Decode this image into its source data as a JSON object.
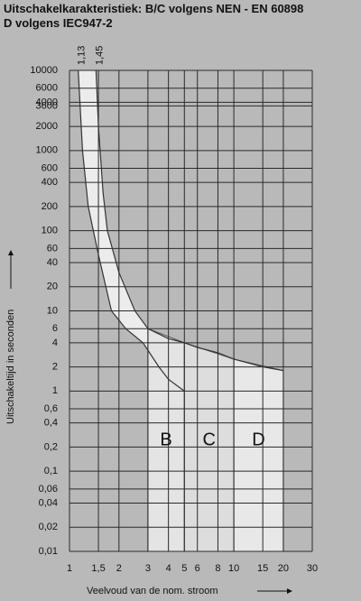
{
  "chart_data": {
    "type": "trip-curve",
    "title": [
      "Uitschakelkarakteristiek: B/C volgens NEN - EN 60898",
      "D volgens IEC947-2"
    ],
    "x_label": "Veelvoud van de nom. stroom",
    "y_label": "Uitschakeltijd in seconden",
    "log_x": true,
    "log_y": true,
    "grid": true,
    "xlim": [
      1,
      30
    ],
    "xticks": [
      1,
      {
        "value": 1.5,
        "label": "1,5"
      },
      2,
      3,
      4,
      5,
      6,
      8,
      10,
      15,
      20,
      30
    ],
    "ylim": [
      0.01,
      10000
    ],
    "yticks": [
      10000,
      6000,
      4000,
      3600,
      2000,
      1000,
      600,
      400,
      200,
      100,
      60,
      40,
      20,
      10,
      6,
      4,
      2,
      1,
      {
        "value": 0.6,
        "label": "0,6"
      },
      {
        "value": 0.4,
        "label": "0,4"
      },
      {
        "value": 0.2,
        "label": "0,2"
      },
      {
        "value": 0.1,
        "label": "0,1"
      },
      {
        "value": 0.06,
        "label": "0,06"
      },
      {
        "value": 0.04,
        "label": "0,04"
      },
      {
        "value": 0.02,
        "label": "0,02"
      },
      {
        "value": 0.01,
        "label": "0,01"
      }
    ],
    "curves": [
      {
        "label": "1,13",
        "x": [
          1.13,
          1.2,
          1.3,
          1.5,
          1.8,
          2.2,
          2.8,
          3.5,
          4,
          5
        ],
        "values": [
          10000,
          1000,
          200,
          50,
          10,
          6,
          4,
          2,
          1.4,
          1
        ]
      },
      {
        "label": "1,45",
        "x": [
          1.45,
          1.5,
          1.6,
          1.7,
          2,
          2.5,
          3,
          4,
          5,
          6,
          8,
          10,
          15,
          20
        ],
        "values": [
          10000,
          2000,
          300,
          100,
          30,
          10,
          6,
          4.5,
          4,
          3.5,
          3,
          2.5,
          2,
          1.8
        ]
      }
    ],
    "regions": [
      {
        "name": "B",
        "x": [
          3,
          3,
          5,
          5
        ],
        "values": [
          6,
          0.01,
          0.01,
          4
        ],
        "color": "#e4e4e4"
      },
      {
        "name": "C",
        "x": [
          5,
          5,
          10,
          10
        ],
        "values": [
          4,
          0.01,
          0.01,
          2.5
        ],
        "color": "#dddddd"
      },
      {
        "name": "D",
        "x": [
          10,
          10,
          20,
          20
        ],
        "values": [
          2.5,
          0.01,
          0.01,
          1.8
        ],
        "color": "#e8e8e8"
      }
    ]
  }
}
